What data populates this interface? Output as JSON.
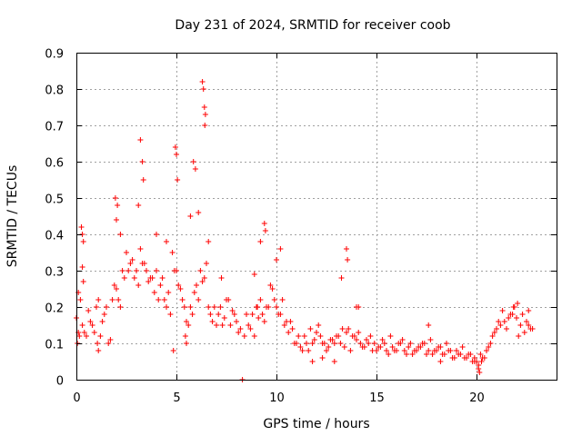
{
  "chart_data": {
    "type": "scatter",
    "title": "Day 231 of 2024, SRMTID for receiver coob",
    "xlabel": "GPS time / hours",
    "ylabel": "SRMTID / TECUs",
    "xlim": [
      0,
      24
    ],
    "ylim": [
      0,
      0.9
    ],
    "xticks": [
      0,
      5,
      10,
      15,
      20
    ],
    "xtick_labels": [
      "0",
      "5",
      "10",
      "15",
      "20"
    ],
    "yticks": [
      0,
      0.1,
      0.2,
      0.3,
      0.4,
      0.5,
      0.6,
      0.7,
      0.8,
      0.9
    ],
    "ytick_labels": [
      "0",
      "0.1",
      "0.2",
      "0.3",
      "0.4",
      "0.5",
      "0.6",
      "0.7",
      "0.8",
      "0.9"
    ],
    "grid": true,
    "marker": "+",
    "color": "#ff0000",
    "series": [
      {
        "name": "SRMTID",
        "x": [
          0.0,
          0.2,
          0.4,
          0.6,
          0.8,
          1.0,
          1.2,
          1.4,
          1.6,
          1.8,
          2.0,
          2.2,
          2.4,
          2.6,
          2.8,
          3.0,
          3.2,
          3.4,
          3.6,
          3.8,
          4.0,
          4.2,
          4.4,
          4.6,
          4.8,
          5.0,
          5.2,
          5.4,
          5.6,
          5.8,
          6.0,
          6.2,
          6.4,
          6.6,
          6.8,
          7.0,
          7.2,
          7.4,
          7.6,
          7.8,
          8.0,
          8.2,
          8.4,
          8.6,
          8.8,
          9.0,
          9.2,
          9.4,
          9.6,
          9.8,
          10.0,
          10.2,
          10.4,
          10.6,
          10.8,
          11.0,
          11.2,
          11.4,
          11.6,
          11.8,
          12.0,
          12.2,
          12.4,
          12.6,
          12.8,
          13.0,
          13.2,
          13.4,
          13.6,
          13.8,
          14.0,
          14.2,
          14.4,
          14.6,
          14.8,
          15.0,
          15.2,
          15.4,
          15.6,
          15.8,
          16.0,
          16.2,
          16.4,
          16.6,
          16.8,
          17.0,
          17.2,
          17.4,
          17.6,
          17.8,
          18.0,
          18.2,
          18.4,
          18.6,
          18.8,
          19.0,
          19.2,
          19.4,
          19.6,
          19.8,
          20.0,
          20.2,
          20.4,
          20.6,
          20.8,
          21.0,
          21.2,
          21.4,
          21.6,
          21.8,
          22.0,
          22.2,
          22.4,
          22.6,
          22.8,
          0.1,
          0.3,
          0.5,
          0.7,
          0.9,
          1.1,
          1.3,
          1.5,
          1.7,
          1.9,
          2.1,
          2.3,
          2.5,
          2.7,
          2.9,
          3.1,
          3.3,
          3.5,
          3.7,
          3.9,
          4.1,
          4.3,
          4.5,
          4.7,
          4.9,
          5.1,
          5.3,
          5.5,
          5.7,
          5.9,
          6.1,
          6.3,
          6.5,
          6.7,
          6.9,
          7.1,
          7.3,
          7.5,
          7.7,
          7.9,
          8.1,
          8.5,
          8.7,
          8.9,
          9.1,
          9.3,
          9.5,
          9.7,
          9.9,
          10.1,
          10.3,
          10.5,
          10.7,
          10.9,
          11.1,
          11.3,
          11.5,
          11.7,
          11.9,
          12.1,
          12.3,
          12.5,
          12.7,
          12.9,
          13.1,
          13.3,
          13.5,
          13.7,
          13.9,
          14.1,
          14.3,
          14.5,
          14.7,
          14.9,
          15.1,
          15.3,
          15.5,
          15.7,
          15.9,
          16.1,
          16.3,
          16.5,
          16.7,
          16.9,
          17.1,
          17.3,
          17.5,
          17.7,
          17.9,
          18.1,
          18.3,
          18.5,
          18.7,
          18.9,
          19.1,
          19.3,
          19.5,
          19.7,
          19.9,
          20.1,
          20.3,
          20.5,
          20.7,
          20.9,
          21.1,
          21.3,
          21.5,
          21.7,
          21.9,
          22.1,
          22.3,
          22.5,
          22.7,
          0.25,
          0.3,
          0.35,
          1.95,
          2.05,
          3.2,
          3.3,
          3.35,
          4.95,
          5.0,
          5.05,
          5.85,
          5.95,
          6.3,
          6.35,
          6.4,
          6.45,
          6.42,
          9.4,
          9.45,
          13.5,
          13.55,
          0.3,
          0.35,
          2.0,
          2.2,
          3.1,
          4.0,
          4.5,
          5.7,
          6.1,
          6.6,
          9.2,
          10.0,
          0.05,
          0.1,
          0.15,
          1.05,
          1.1,
          4.85,
          5.45,
          5.5,
          7.25,
          8.9,
          9.05,
          10.2,
          11.8,
          12.3,
          12.9,
          13.25,
          14.0,
          14.1,
          17.6,
          18.2,
          19.9,
          20.1,
          20.15,
          20.25,
          21.85,
          22.05,
          22.6,
          8.3
        ],
        "y": [
          0.17,
          0.22,
          0.13,
          0.19,
          0.15,
          0.2,
          0.12,
          0.18,
          0.1,
          0.22,
          0.25,
          0.2,
          0.28,
          0.3,
          0.33,
          0.3,
          0.36,
          0.32,
          0.27,
          0.28,
          0.3,
          0.26,
          0.22,
          0.24,
          0.35,
          0.3,
          0.25,
          0.2,
          0.15,
          0.18,
          0.26,
          0.3,
          0.28,
          0.2,
          0.16,
          0.15,
          0.2,
          0.17,
          0.22,
          0.19,
          0.16,
          0.14,
          0.12,
          0.15,
          0.18,
          0.2,
          0.22,
          0.16,
          0.2,
          0.25,
          0.2,
          0.18,
          0.15,
          0.13,
          0.14,
          0.1,
          0.09,
          0.12,
          0.08,
          0.1,
          0.13,
          0.12,
          0.1,
          0.09,
          0.11,
          0.12,
          0.1,
          0.09,
          0.14,
          0.12,
          0.11,
          0.1,
          0.09,
          0.1,
          0.08,
          0.08,
          0.09,
          0.1,
          0.07,
          0.09,
          0.08,
          0.1,
          0.08,
          0.09,
          0.07,
          0.08,
          0.09,
          0.1,
          0.08,
          0.07,
          0.08,
          0.09,
          0.07,
          0.08,
          0.06,
          0.08,
          0.07,
          0.06,
          0.07,
          0.05,
          0.05,
          0.07,
          0.06,
          0.09,
          0.12,
          0.14,
          0.15,
          0.16,
          0.17,
          0.18,
          0.17,
          0.15,
          0.13,
          0.15,
          0.14,
          0.24,
          0.15,
          0.12,
          0.16,
          0.13,
          0.22,
          0.16,
          0.2,
          0.11,
          0.26,
          0.22,
          0.3,
          0.35,
          0.32,
          0.28,
          0.26,
          0.32,
          0.3,
          0.28,
          0.24,
          0.22,
          0.28,
          0.2,
          0.18,
          0.3,
          0.26,
          0.22,
          0.16,
          0.2,
          0.24,
          0.22,
          0.27,
          0.32,
          0.18,
          0.2,
          0.18,
          0.15,
          0.22,
          0.15,
          0.18,
          0.13,
          0.18,
          0.14,
          0.12,
          0.17,
          0.18,
          0.2,
          0.26,
          0.22,
          0.18,
          0.22,
          0.16,
          0.16,
          0.1,
          0.12,
          0.08,
          0.1,
          0.14,
          0.11,
          0.15,
          0.1,
          0.08,
          0.11,
          0.1,
          0.12,
          0.14,
          0.13,
          0.08,
          0.12,
          0.13,
          0.09,
          0.11,
          0.12,
          0.1,
          0.09,
          0.11,
          0.08,
          0.12,
          0.08,
          0.1,
          0.11,
          0.07,
          0.1,
          0.08,
          0.09,
          0.1,
          0.07,
          0.11,
          0.08,
          0.09,
          0.07,
          0.1,
          0.08,
          0.06,
          0.07,
          0.09,
          0.06,
          0.07,
          0.05,
          0.04,
          0.06,
          0.08,
          0.1,
          0.13,
          0.16,
          0.19,
          0.14,
          0.18,
          0.2,
          0.12,
          0.18,
          0.16,
          0.14,
          0.42,
          0.4,
          0.38,
          0.5,
          0.48,
          0.66,
          0.6,
          0.55,
          0.64,
          0.62,
          0.55,
          0.6,
          0.58,
          0.82,
          0.8,
          0.75,
          0.73,
          0.7,
          0.43,
          0.41,
          0.36,
          0.33,
          0.31,
          0.27,
          0.44,
          0.4,
          0.48,
          0.4,
          0.38,
          0.45,
          0.46,
          0.38,
          0.38,
          0.33,
          0.1,
          0.13,
          0.12,
          0.1,
          0.08,
          0.08,
          0.12,
          0.1,
          0.28,
          0.29,
          0.2,
          0.36,
          0.05,
          0.06,
          0.05,
          0.28,
          0.2,
          0.2,
          0.15,
          0.05,
          0.06,
          0.03,
          0.02,
          0.05,
          0.2,
          0.21,
          0.19,
          0.0
        ]
      }
    ]
  }
}
